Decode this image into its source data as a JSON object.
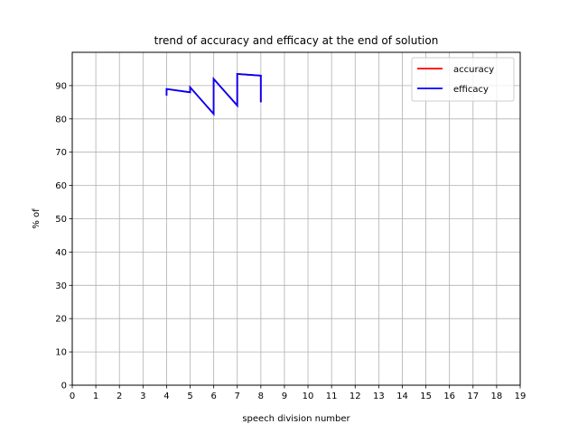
{
  "chart_data": {
    "type": "line",
    "title": "trend of accuracy and efficacy at the end of solution",
    "xlabel": "speech division number",
    "ylabel": "% of",
    "xlim": [
      0,
      19
    ],
    "ylim": [
      0,
      100
    ],
    "xticks": [
      0,
      1,
      2,
      3,
      4,
      5,
      6,
      7,
      8,
      9,
      10,
      11,
      12,
      13,
      14,
      15,
      16,
      17,
      18,
      19
    ],
    "yticks": [
      0,
      10,
      20,
      30,
      40,
      50,
      60,
      70,
      80,
      90
    ],
    "grid": true,
    "legend_position": "top-right",
    "series": [
      {
        "name": "accuracy",
        "color": "#ff0000",
        "x": [
          4,
          4,
          5,
          5,
          6,
          6,
          7,
          7,
          8,
          8
        ],
        "y": [
          87,
          89,
          88,
          89.5,
          81.5,
          92,
          84,
          93.5,
          93,
          85
        ]
      },
      {
        "name": "efficacy",
        "color": "#0000ff",
        "x": [
          4,
          4,
          5,
          5,
          6,
          6,
          7,
          7,
          8,
          8
        ],
        "y": [
          87,
          89,
          88,
          89.5,
          81.5,
          92,
          84,
          93.5,
          93,
          85
        ]
      }
    ]
  }
}
